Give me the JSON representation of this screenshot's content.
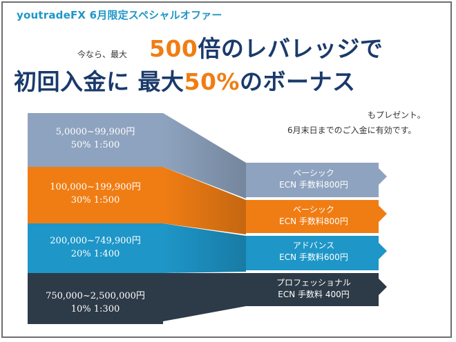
{
  "header": {
    "brand": "youtradeFX 6月限定スペシャルオファー",
    "intro": "今なら、最大",
    "headline1_number": "500",
    "headline1_text": "倍のレバレッジで",
    "headline2_prefix": "初回入金に 最大",
    "headline2_number": "50%",
    "headline2_suffix": "のボーナス",
    "sub1": "もプレゼント。",
    "sub2": "6月末日までのご入金に有効です。"
  },
  "tiers": [
    {
      "range": "5,0000~99,900円",
      "bonus": "50% 1:500",
      "plan": "ベーシック",
      "fee": "ECN 手数料800円"
    },
    {
      "range": "100,000~199,900円",
      "bonus": "30% 1:500",
      "plan": "ベーシック",
      "fee": "ECN 手数料800円"
    },
    {
      "range": "200,000~749,900円",
      "bonus": "20% 1:400",
      "plan": "アドバンス",
      "fee": "ECN 手数料600円"
    },
    {
      "range": "750,000~2,500,000円",
      "bonus": "10% 1:300",
      "plan": "プロフェッショナル",
      "fee": "ECN 手数料 400円"
    }
  ],
  "colors": {
    "tier1": "#8ea3bf",
    "tier2": "#f07d14",
    "tier3": "#1e96c8",
    "tier4": "#2d3a47",
    "accent": "#f07d14",
    "navy": "#1a3a6b"
  }
}
